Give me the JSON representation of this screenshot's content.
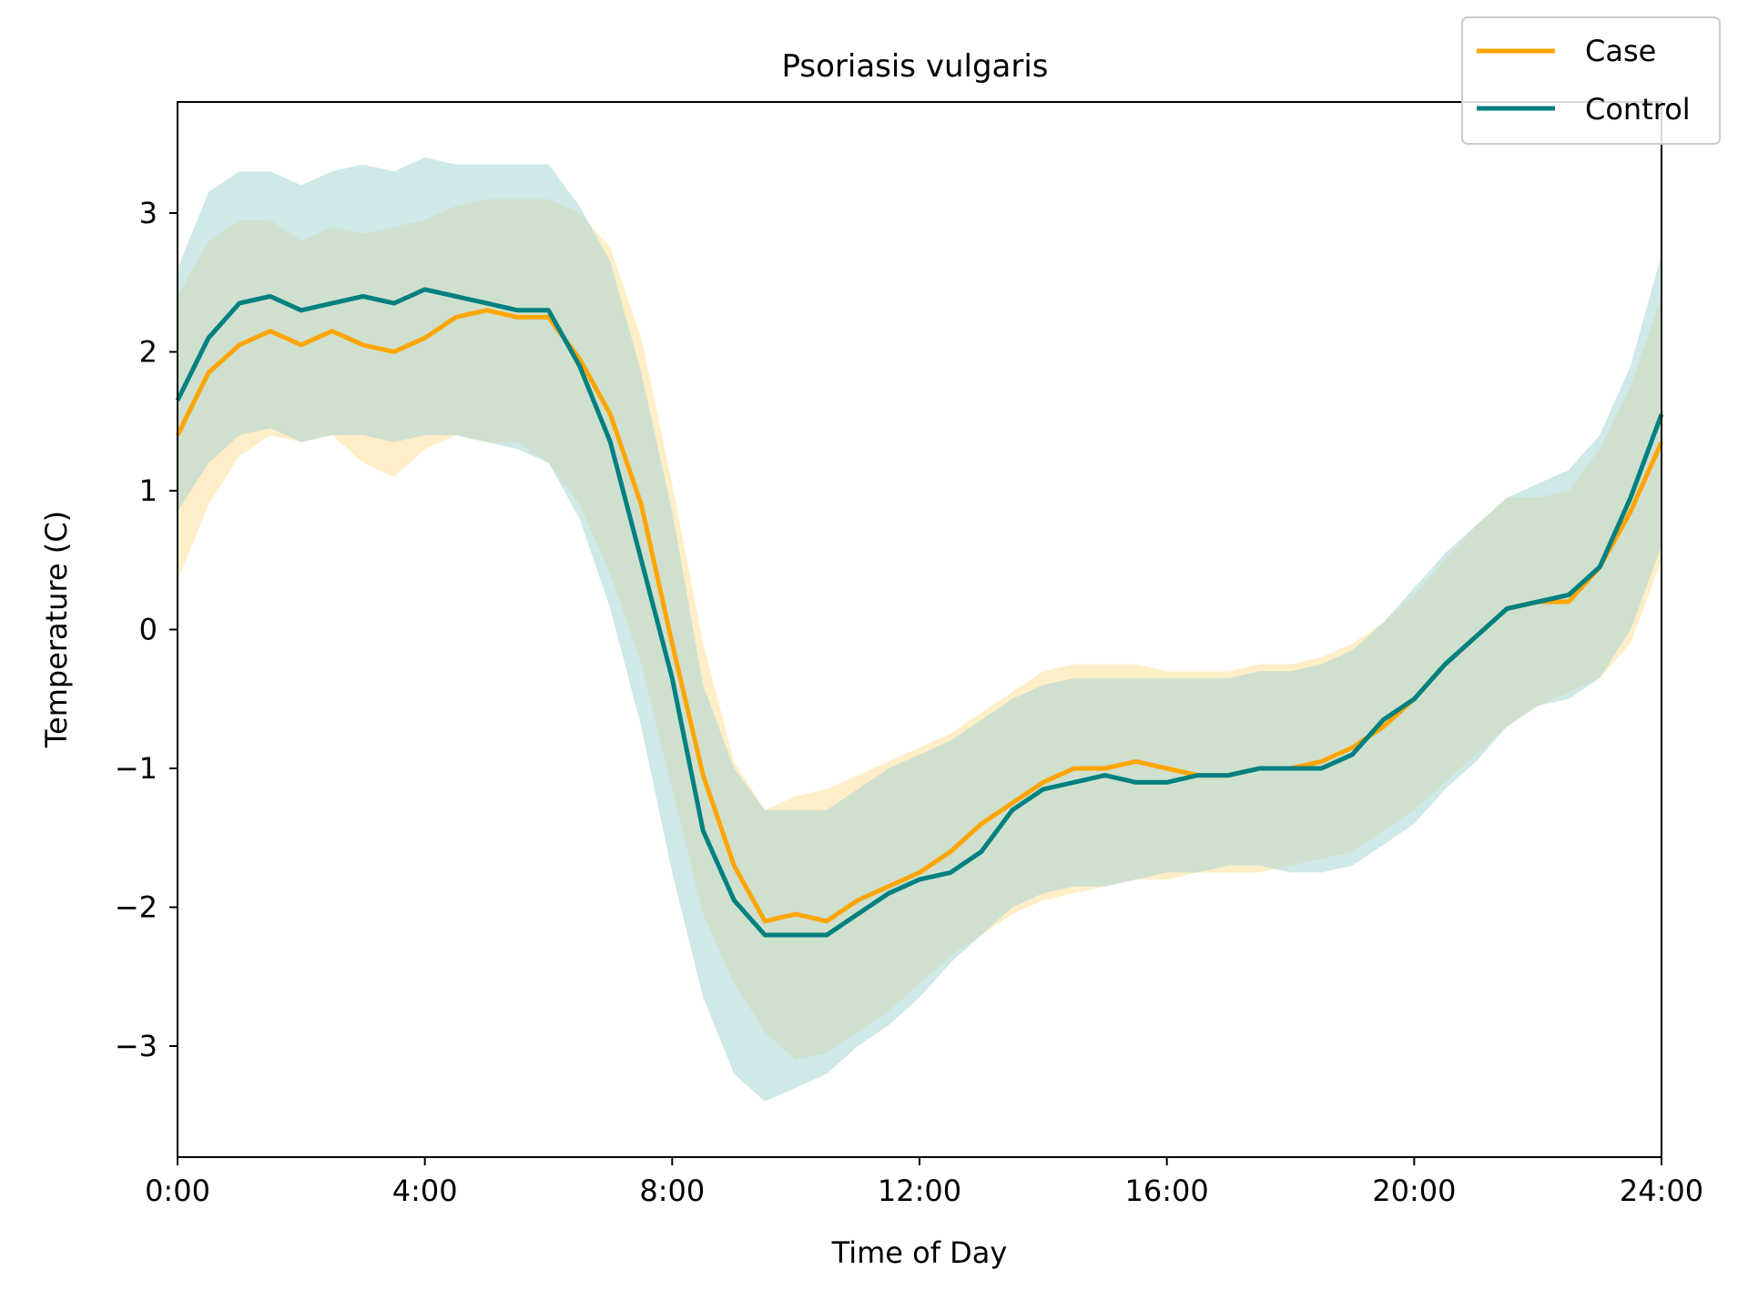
{
  "chart_data": {
    "type": "line",
    "title": "Psoriasis vulgaris",
    "xlabel": "Time of Day",
    "ylabel": "Temperature (C)",
    "xlim": [
      0,
      24
    ],
    "ylim": [
      -3.8,
      3.8
    ],
    "x_ticks": [
      0,
      4,
      8,
      12,
      16,
      20,
      24
    ],
    "x_tick_labels": [
      "0:00",
      "4:00",
      "8:00",
      "12:00",
      "16:00",
      "20:00",
      "24:00"
    ],
    "y_ticks": [
      -3,
      -2,
      -1,
      0,
      1,
      2,
      3
    ],
    "y_tick_labels": [
      "−3",
      "−2",
      "−1",
      "0",
      "1",
      "2",
      "3"
    ],
    "grid": false,
    "legend_position": "top-right",
    "x": [
      0,
      0.5,
      1,
      1.5,
      2,
      2.5,
      3,
      3.5,
      4,
      4.5,
      5,
      5.5,
      6,
      6.5,
      7,
      7.5,
      8,
      8.5,
      9,
      9.5,
      10,
      10.5,
      11,
      11.5,
      12,
      12.5,
      13,
      13.5,
      14,
      14.5,
      15,
      15.5,
      16,
      16.5,
      17,
      17.5,
      18,
      18.5,
      19,
      19.5,
      20,
      20.5,
      21,
      21.5,
      22,
      22.5,
      23,
      23.5,
      24
    ],
    "series": [
      {
        "name": "Case",
        "color": "#FFA500",
        "band_color": "#FFE8B5",
        "values": [
          1.4,
          1.85,
          2.05,
          2.15,
          2.05,
          2.15,
          2.05,
          2.0,
          2.1,
          2.25,
          2.3,
          2.25,
          2.25,
          1.95,
          1.55,
          0.9,
          -0.1,
          -1.05,
          -1.7,
          -2.1,
          -2.05,
          -2.1,
          -1.95,
          -1.85,
          -1.75,
          -1.6,
          -1.4,
          -1.25,
          -1.1,
          -1.0,
          -1.0,
          -0.95,
          -1.0,
          -1.05,
          -1.05,
          -1.0,
          -1.0,
          -0.95,
          -0.85,
          -0.7,
          -0.5,
          -0.25,
          -0.05,
          0.15,
          0.2,
          0.2,
          0.45,
          0.85,
          1.35
        ],
        "lower": [
          0.35,
          0.9,
          1.25,
          1.4,
          1.35,
          1.4,
          1.2,
          1.1,
          1.3,
          1.4,
          1.35,
          1.35,
          1.2,
          0.9,
          0.4,
          -0.25,
          -1.15,
          -2.05,
          -2.55,
          -2.9,
          -3.1,
          -3.05,
          -2.9,
          -2.75,
          -2.55,
          -2.35,
          -2.2,
          -2.05,
          -1.95,
          -1.9,
          -1.85,
          -1.8,
          -1.8,
          -1.75,
          -1.75,
          -1.75,
          -1.7,
          -1.65,
          -1.6,
          -1.45,
          -1.3,
          -1.1,
          -0.9,
          -0.7,
          -0.55,
          -0.45,
          -0.35,
          -0.1,
          0.5
        ],
        "upper": [
          2.4,
          2.8,
          2.95,
          2.95,
          2.8,
          2.9,
          2.85,
          2.9,
          2.95,
          3.05,
          3.1,
          3.1,
          3.1,
          3.0,
          2.75,
          2.1,
          1.05,
          -0.1,
          -0.95,
          -1.3,
          -1.2,
          -1.15,
          -1.05,
          -0.95,
          -0.85,
          -0.75,
          -0.6,
          -0.45,
          -0.3,
          -0.25,
          -0.25,
          -0.25,
          -0.3,
          -0.3,
          -0.3,
          -0.25,
          -0.25,
          -0.2,
          -0.1,
          0.05,
          0.25,
          0.5,
          0.75,
          0.95,
          0.95,
          1.0,
          1.3,
          1.75,
          2.4
        ]
      },
      {
        "name": "Control",
        "color": "#008080",
        "band_color": "#A8D5D5",
        "values": [
          1.65,
          2.1,
          2.35,
          2.4,
          2.3,
          2.35,
          2.4,
          2.35,
          2.45,
          2.4,
          2.35,
          2.3,
          2.3,
          1.9,
          1.35,
          0.5,
          -0.35,
          -1.45,
          -1.95,
          -2.2,
          -2.2,
          -2.2,
          -2.05,
          -1.9,
          -1.8,
          -1.75,
          -1.6,
          -1.3,
          -1.15,
          -1.1,
          -1.05,
          -1.1,
          -1.1,
          -1.05,
          -1.05,
          -1.0,
          -1.0,
          -1.0,
          -0.9,
          -0.65,
          -0.5,
          -0.25,
          -0.05,
          0.15,
          0.2,
          0.25,
          0.45,
          0.95,
          1.55
        ],
        "lower": [
          0.85,
          1.2,
          1.4,
          1.45,
          1.35,
          1.4,
          1.4,
          1.35,
          1.4,
          1.4,
          1.35,
          1.3,
          1.2,
          0.8,
          0.15,
          -0.7,
          -1.75,
          -2.65,
          -3.2,
          -3.4,
          -3.3,
          -3.2,
          -3.0,
          -2.85,
          -2.65,
          -2.4,
          -2.2,
          -2.0,
          -1.9,
          -1.85,
          -1.85,
          -1.8,
          -1.75,
          -1.75,
          -1.7,
          -1.7,
          -1.75,
          -1.75,
          -1.7,
          -1.55,
          -1.4,
          -1.15,
          -0.95,
          -0.7,
          -0.55,
          -0.5,
          -0.35,
          0.0,
          0.6
        ],
        "upper": [
          2.6,
          3.15,
          3.3,
          3.3,
          3.2,
          3.3,
          3.35,
          3.3,
          3.4,
          3.35,
          3.35,
          3.35,
          3.35,
          3.05,
          2.65,
          1.85,
          0.85,
          -0.4,
          -1.0,
          -1.3,
          -1.3,
          -1.3,
          -1.15,
          -1.0,
          -0.9,
          -0.8,
          -0.65,
          -0.5,
          -0.4,
          -0.35,
          -0.35,
          -0.35,
          -0.35,
          -0.35,
          -0.35,
          -0.3,
          -0.3,
          -0.25,
          -0.15,
          0.05,
          0.3,
          0.55,
          0.75,
          0.95,
          1.05,
          1.15,
          1.4,
          1.9,
          2.7
        ]
      }
    ]
  }
}
